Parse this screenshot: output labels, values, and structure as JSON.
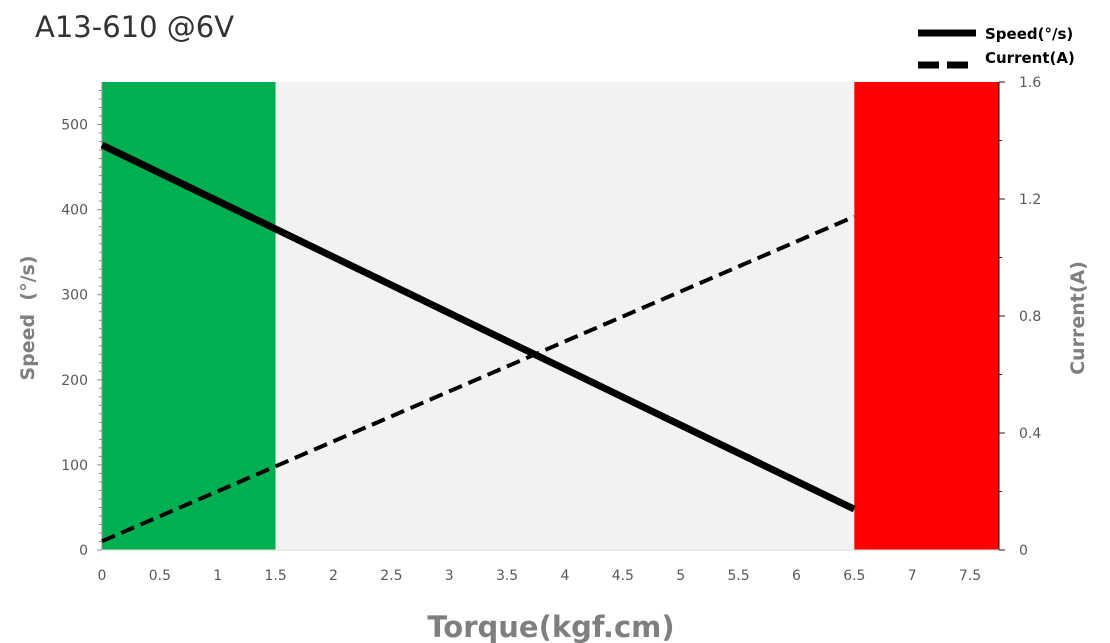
{
  "chart_data": {
    "type": "line",
    "title": "A13-610 @6V",
    "xlabel": "Torque(kgf.cm)",
    "ylabel": "Speed  (°/s)",
    "y2label": "Current(A)",
    "xlim": [
      0,
      7.75
    ],
    "ylim": [
      0,
      550
    ],
    "y2lim": [
      0,
      1.6
    ],
    "x_ticks": [
      0,
      0.5,
      1,
      1.5,
      2,
      2.5,
      3,
      3.5,
      4,
      4.5,
      5,
      5.5,
      6,
      6.5,
      7,
      7.5
    ],
    "x_tick_labels": [
      "0",
      "0.5",
      "1",
      "1.5",
      "2",
      "2.5",
      "3",
      "3.5",
      "4",
      "4.5",
      "5",
      "5.5",
      "6",
      "6.5",
      "7",
      "7.5"
    ],
    "y_ticks": [
      0,
      100,
      200,
      300,
      400,
      500
    ],
    "y_tick_labels": [
      "0",
      "100",
      "200",
      "300",
      "400",
      "500"
    ],
    "y2_ticks": [
      0,
      0.4,
      0.8,
      1.2,
      1.6
    ],
    "y2_tick_labels": [
      "0",
      "0.4",
      "0.8",
      "1.2",
      "1.6"
    ],
    "legend_position": "top-right",
    "series": [
      {
        "name": "Speed(°/s)",
        "axis": "left",
        "style": "solid",
        "color": "#000000",
        "x": [
          0,
          6.5
        ],
        "y": [
          476,
          48
        ]
      },
      {
        "name": "Current(A)",
        "axis": "right",
        "style": "dashed",
        "color": "#000000",
        "x": [
          0,
          6.5
        ],
        "y": [
          0.03,
          1.14
        ]
      }
    ],
    "regions": [
      {
        "name": "green-zone",
        "from": 0,
        "to": 1.5,
        "color": "#00b050"
      },
      {
        "name": "neutral-zone",
        "from": 1.5,
        "to": 6.5,
        "color": "#f2f2f2"
      },
      {
        "name": "red-zone",
        "from": 6.5,
        "to": 7.75,
        "color": "#ff0000"
      }
    ]
  }
}
